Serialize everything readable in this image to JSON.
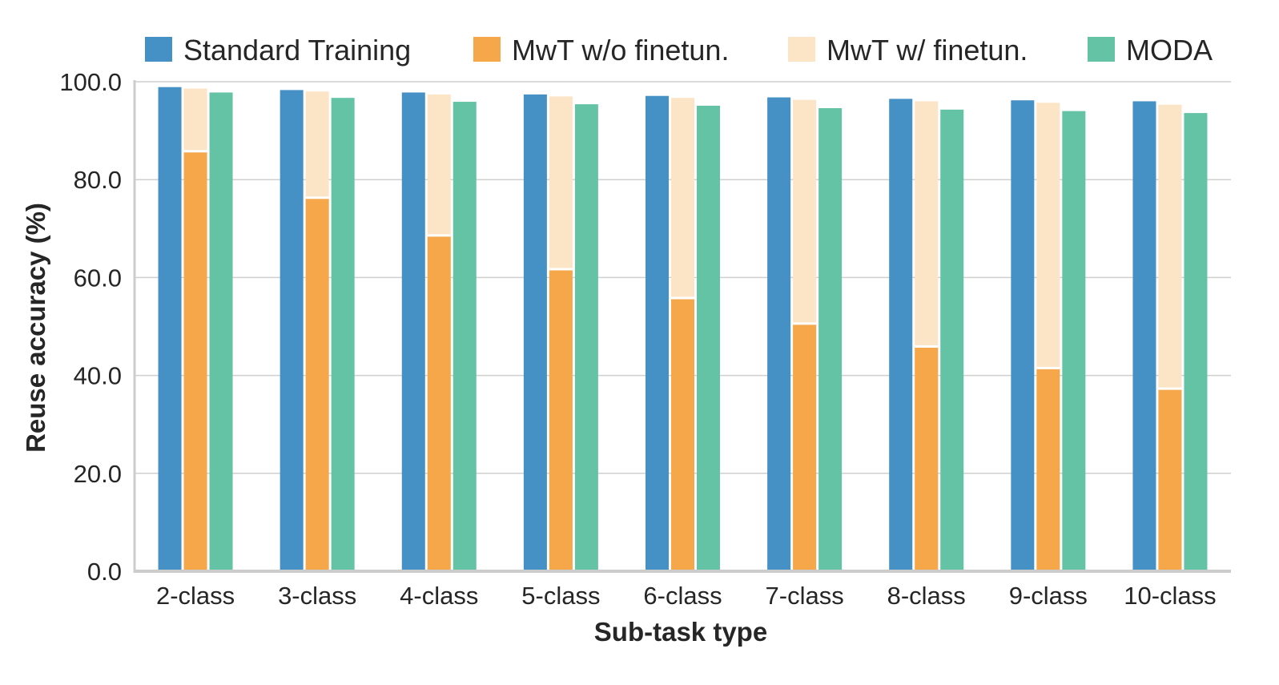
{
  "chart_data": {
    "type": "bar",
    "xlabel": "Sub-task type",
    "ylabel": "Reuse accuracy (%)",
    "ylim": [
      0,
      100
    ],
    "yticks": [
      "0.0",
      "20.0",
      "40.0",
      "60.0",
      "80.0",
      "100.0"
    ],
    "grid": "horizontal",
    "legend_position": "top",
    "categories": [
      "2-class",
      "3-class",
      "4-class",
      "5-class",
      "6-class",
      "7-class",
      "8-class",
      "9-class",
      "10-class"
    ],
    "series": [
      {
        "name": "Standard Training",
        "color": "#4590c5",
        "values": [
          98.9,
          98.3,
          97.8,
          97.4,
          97.1,
          96.8,
          96.5,
          96.2,
          96.0
        ]
      },
      {
        "name": "MwT w/o finetun.",
        "color": "#f5a74a",
        "values": [
          85.8,
          76.3,
          68.6,
          61.7,
          55.8,
          50.6,
          45.9,
          41.5,
          37.3
        ]
      },
      {
        "name": "MwT w/ finetun.",
        "color": "#fce4c7",
        "values": [
          98.6,
          98.0,
          97.4,
          97.0,
          96.7,
          96.3,
          96.0,
          95.7,
          95.3
        ]
      },
      {
        "name": "MODA",
        "color": "#65c3a5",
        "values": [
          97.8,
          96.7,
          95.9,
          95.4,
          95.1,
          94.6,
          94.3,
          94.0,
          93.6
        ]
      }
    ]
  }
}
